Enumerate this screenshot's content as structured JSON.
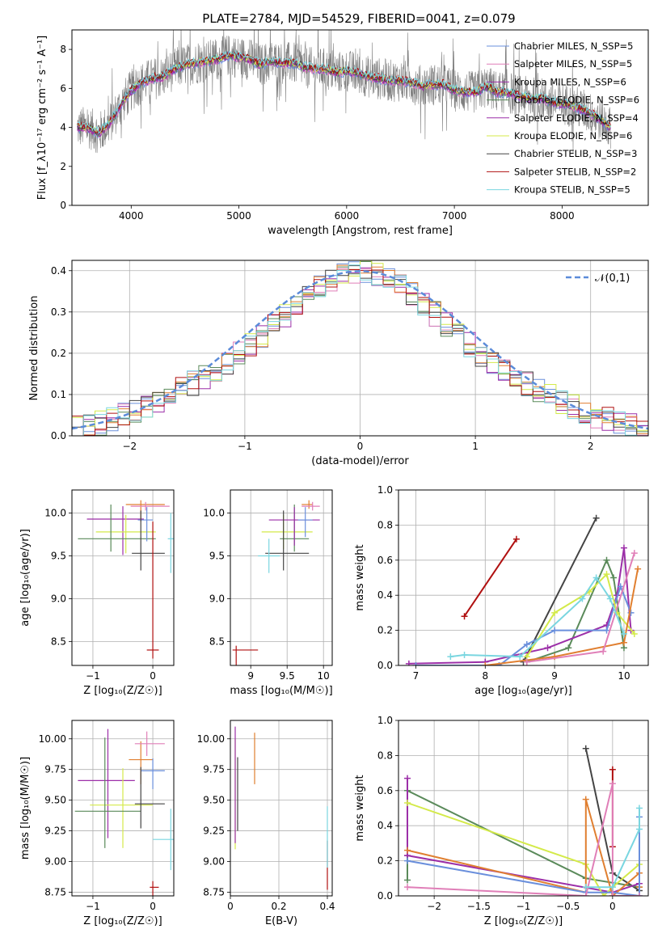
{
  "figure": {
    "title": "PLATE=2784, MJD=54529, FIBERID=0041, z=0.079"
  },
  "chart_data": [
    {
      "id": "spectrum",
      "type": "line",
      "xlabel": "wavelength [Angstrom, rest frame]",
      "ylabel": "Flux [f_λ10⁻¹⁷ erg cm⁻² s⁻¹ A⁻¹]",
      "xlim": [
        3450,
        8800
      ],
      "ylim": [
        0,
        9
      ],
      "xticks": [
        4000,
        5000,
        6000,
        7000,
        8000
      ],
      "yticks": [
        0,
        2,
        4,
        6,
        8
      ],
      "grid": false,
      "legend_position": "upper-right",
      "legend": [
        {
          "label": "Chabrier MILES, N_SSP=5",
          "color": "#6a8fdc"
        },
        {
          "label": "Salpeter MILES, N_SSP=5",
          "color": "#e07fb8"
        },
        {
          "label": "Kroupa MILES, N_SSP=6",
          "color": "#9c2fa8"
        },
        {
          "label": "Chabrier ELODIE, N_SSP=6",
          "color": "#5a8a5a"
        },
        {
          "label": "Salpeter ELODIE, N_SSP=4",
          "color": "#9c2fa8"
        },
        {
          "label": "Kroupa ELODIE, N_SSP=6",
          "color": "#d4ea4a"
        },
        {
          "label": "Chabrier STELIB, N_SSP=3",
          "color": "#444444"
        },
        {
          "label": "Salpeter STELIB, N_SSP=2",
          "color": "#b01010"
        },
        {
          "label": "Kroupa STELIB, N_SSP=5",
          "color": "#7ad6e0"
        }
      ],
      "continuum": [
        [
          3500,
          4.0
        ],
        [
          3600,
          4.0
        ],
        [
          3700,
          3.7
        ],
        [
          3800,
          4.2
        ],
        [
          3900,
          5.1
        ],
        [
          4000,
          5.9
        ],
        [
          4100,
          6.3
        ],
        [
          4200,
          6.5
        ],
        [
          4300,
          6.6
        ],
        [
          4400,
          7.0
        ],
        [
          4500,
          7.2
        ],
        [
          4600,
          7.3
        ],
        [
          4700,
          7.4
        ],
        [
          4800,
          7.5
        ],
        [
          4900,
          7.7
        ],
        [
          5000,
          7.6
        ],
        [
          5100,
          7.5
        ],
        [
          5200,
          7.2
        ],
        [
          5300,
          7.4
        ],
        [
          5400,
          7.3
        ],
        [
          5500,
          7.3
        ],
        [
          5600,
          7.1
        ],
        [
          5700,
          7.0
        ],
        [
          5800,
          7.0
        ],
        [
          5900,
          6.8
        ],
        [
          6000,
          6.9
        ],
        [
          6100,
          6.8
        ],
        [
          6200,
          6.6
        ],
        [
          6300,
          6.5
        ],
        [
          6400,
          6.4
        ],
        [
          6500,
          6.4
        ],
        [
          6600,
          6.3
        ],
        [
          6700,
          6.1
        ],
        [
          6800,
          6.2
        ],
        [
          6900,
          6.2
        ],
        [
          7000,
          5.9
        ],
        [
          7100,
          5.8
        ],
        [
          7200,
          5.8
        ],
        [
          7300,
          6.1
        ],
        [
          7400,
          5.8
        ],
        [
          7500,
          5.8
        ],
        [
          7600,
          5.6
        ],
        [
          7700,
          5.5
        ],
        [
          7800,
          5.5
        ],
        [
          7900,
          5.3
        ],
        [
          8000,
          5.2
        ],
        [
          8100,
          5.1
        ],
        [
          8200,
          4.9
        ],
        [
          8300,
          4.6
        ],
        [
          8400,
          4.2
        ],
        [
          8450,
          4.0
        ]
      ]
    },
    {
      "id": "residuals",
      "type": "histogram",
      "xlabel": "(data-model)/error",
      "ylabel": "Normed distribution",
      "xlim": [
        -2.5,
        2.5
      ],
      "ylim": [
        0,
        0.425
      ],
      "xticks": [
        -2,
        -1,
        0,
        1,
        2
      ],
      "yticks": [
        0.0,
        0.1,
        0.2,
        0.3,
        0.4
      ],
      "grid": true,
      "legend_position": "upper-right",
      "reference_curve": {
        "label": "𝒩(0,1)",
        "color": "#5b8bd9",
        "style": "dashed"
      }
    },
    {
      "id": "age_vs_Z",
      "type": "errorbar",
      "xlabel": "Z [log₁₀(Z/Z☉)]",
      "ylabel": "age  [log₁₀(age/yr)]",
      "xlim": [
        -1.35,
        0.35
      ],
      "ylim": [
        8.22,
        10.27
      ],
      "xticks": [
        -1,
        0
      ],
      "yticks": [
        8.5,
        9.0,
        9.5,
        10.0
      ],
      "grid": true,
      "points": [
        {
          "x": -0.5,
          "y": 9.93,
          "xe": [
            0.6,
            0.35
          ],
          "ye": [
            0.42,
            0.15
          ],
          "color": "#9c2fa8"
        },
        {
          "x": -0.45,
          "y": 9.78,
          "xe": [
            0.5,
            0.5
          ],
          "ye": [
            0.25,
            0.2
          ],
          "color": "#d4ea4a"
        },
        {
          "x": -0.7,
          "y": 9.7,
          "xe": [
            0.55,
            0.75
          ],
          "ye": [
            0.15,
            0.4
          ],
          "color": "#5a8a5a"
        },
        {
          "x": -0.2,
          "y": 10.1,
          "xe": [
            0.25,
            0.4
          ],
          "ye": [
            0.2,
            0.05
          ],
          "color": "#e07f30"
        },
        {
          "x": -0.1,
          "y": 9.92,
          "xe": [
            0.15,
            0.1
          ],
          "ye": [
            0.25,
            0.15
          ],
          "color": "#6a8fdc"
        },
        {
          "x": -0.12,
          "y": 10.08,
          "xe": [
            0.25,
            0.4
          ],
          "ye": [
            0.05,
            0.05
          ],
          "color": "#e07fb8"
        },
        {
          "x": -0.2,
          "y": 9.53,
          "xe": [
            0.15,
            0.4
          ],
          "ye": [
            0.2,
            0.5
          ],
          "color": "#444444"
        },
        {
          "x": 0.3,
          "y": 9.7,
          "xe": [
            0.05,
            0.05
          ],
          "ye": [
            0.4,
            0.3
          ],
          "color": "#7ad6e0"
        },
        {
          "x": 0.0,
          "y": 8.4,
          "xe": [
            0.1,
            0.1
          ],
          "ye": [
            0.1,
            1.5
          ],
          "color": "#b01010"
        }
      ]
    },
    {
      "id": "age_vs_mass",
      "type": "errorbar",
      "xlabel": "mass [log₁₀(M/M☉)]",
      "ylabel": "",
      "xlim": [
        8.72,
        10.12
      ],
      "ylim": [
        8.22,
        10.27
      ],
      "xticks": [
        9.0,
        9.5,
        10.0
      ],
      "yticks": [
        8.5,
        9.0,
        9.5,
        10.0
      ],
      "grid": true,
      "points": [
        {
          "x": 9.45,
          "y": 9.78,
          "xe": [
            0.3,
            0.4
          ],
          "ye": [
            0.2,
            0.2
          ],
          "color": "#d4ea4a"
        },
        {
          "x": 9.6,
          "y": 9.7,
          "xe": [
            0.2,
            0.2
          ],
          "ye": [
            0.15,
            0.4
          ],
          "color": "#5a8a5a"
        },
        {
          "x": 9.6,
          "y": 9.92,
          "xe": [
            0.35,
            0.35
          ],
          "ye": [
            0.3,
            0.15
          ],
          "color": "#9c2fa8"
        },
        {
          "x": 9.8,
          "y": 10.1,
          "xe": [
            0.1,
            0.05
          ],
          "ye": [
            0.05,
            0.05
          ],
          "color": "#e07f30"
        },
        {
          "x": 9.85,
          "y": 10.08,
          "xe": [
            0.15,
            0.1
          ],
          "ye": [
            0.05,
            0.05
          ],
          "color": "#e07fb8"
        },
        {
          "x": 9.75,
          "y": 9.92,
          "xe": [
            0.1,
            0.1
          ],
          "ye": [
            0.2,
            0.15
          ],
          "color": "#6a8fdc"
        },
        {
          "x": 9.45,
          "y": 9.53,
          "xe": [
            0.25,
            0.35
          ],
          "ye": [
            0.2,
            0.5
          ],
          "color": "#444444"
        },
        {
          "x": 9.25,
          "y": 9.5,
          "xe": [
            0.15,
            0.15
          ],
          "ye": [
            0.2,
            0.2
          ],
          "color": "#7ad6e0"
        },
        {
          "x": 8.8,
          "y": 8.4,
          "xe": [
            0.05,
            0.3
          ],
          "ye": [
            1.3,
            0.05
          ],
          "color": "#b01010"
        }
      ]
    },
    {
      "id": "massweight_vs_age",
      "type": "line",
      "xlabel": "age  [log₁₀(age/yr)]",
      "ylabel": "mass weight",
      "xlim": [
        6.75,
        10.35
      ],
      "ylim": [
        0,
        1.0
      ],
      "xticks": [
        7,
        8,
        9,
        10
      ],
      "yticks": [
        0.0,
        0.2,
        0.4,
        0.6,
        0.8,
        1.0
      ],
      "grid": true,
      "series": [
        {
          "color": "#b01010",
          "x": [
            7.7,
            8.45
          ],
          "y": [
            0.28,
            0.72
          ]
        },
        {
          "color": "#444444",
          "x": [
            8.55,
            9.6
          ],
          "y": [
            0.02,
            0.84
          ]
        },
        {
          "color": "#5a8a5a",
          "x": [
            8.6,
            9.2,
            9.75,
            9.85,
            10.0
          ],
          "y": [
            0.02,
            0.1,
            0.6,
            0.5,
            0.1
          ]
        },
        {
          "color": "#9c2fa8",
          "x": [
            6.9,
            8.0,
            8.9,
            9.75,
            9.9,
            10.0,
            10.1
          ],
          "y": [
            0.01,
            0.02,
            0.1,
            0.23,
            0.4,
            0.67,
            0.2
          ]
        },
        {
          "color": "#6a8fdc",
          "x": [
            7.0,
            8.2,
            8.6,
            9.0,
            9.75,
            9.95,
            10.1
          ],
          "y": [
            0.0,
            0.0,
            0.12,
            0.2,
            0.2,
            0.45,
            0.3
          ]
        },
        {
          "color": "#d4ea4a",
          "x": [
            8.6,
            9.0,
            9.5,
            9.75,
            9.9,
            10.15
          ],
          "y": [
            0.05,
            0.3,
            0.42,
            0.52,
            0.3,
            0.18
          ]
        },
        {
          "color": "#e07f30",
          "x": [
            8.0,
            9.0,
            10.0,
            10.2
          ],
          "y": [
            0.0,
            0.05,
            0.13,
            0.55
          ]
        },
        {
          "color": "#e07fb8",
          "x": [
            8.6,
            9.7,
            10.15
          ],
          "y": [
            0.02,
            0.08,
            0.64
          ]
        },
        {
          "color": "#7ad6e0",
          "x": [
            7.5,
            7.7,
            8.5,
            9.4,
            9.6,
            9.8,
            10.0
          ],
          "y": [
            0.05,
            0.06,
            0.05,
            0.38,
            0.5,
            0.38,
            0.18
          ]
        }
      ]
    },
    {
      "id": "mass_vs_Z",
      "type": "errorbar",
      "xlabel": "Z [log₁₀(Z/Z☉)]",
      "ylabel": "mass [log₁₀(M/M☉)]",
      "xlim": [
        -1.35,
        0.35
      ],
      "ylim": [
        8.72,
        10.15
      ],
      "xticks": [
        -1,
        0
      ],
      "yticks": [
        8.75,
        9.0,
        9.25,
        9.5,
        9.75,
        10.0
      ],
      "grid": true,
      "points": [
        {
          "x": -0.75,
          "y": 9.66,
          "xe": [
            0.5,
            0.45
          ],
          "ye": [
            0.47,
            0.42
          ],
          "color": "#9c2fa8"
        },
        {
          "x": -0.5,
          "y": 9.46,
          "xe": [
            0.55,
            0.5
          ],
          "ye": [
            0.35,
            0.3
          ],
          "color": "#d4ea4a"
        },
        {
          "x": -0.8,
          "y": 9.41,
          "xe": [
            0.5,
            0.6
          ],
          "ye": [
            0.3,
            0.6
          ],
          "color": "#5a8a5a"
        },
        {
          "x": -0.2,
          "y": 9.83,
          "xe": [
            0.2,
            0.2
          ],
          "ye": [
            0.2,
            0.15
          ],
          "color": "#e07f30"
        },
        {
          "x": -0.1,
          "y": 9.96,
          "xe": [
            0.2,
            0.3
          ],
          "ye": [
            0.1,
            0.1
          ],
          "color": "#e07fb8"
        },
        {
          "x": 0.0,
          "y": 9.74,
          "xe": [
            0.2,
            0.2
          ],
          "ye": [
            0.15,
            0.1
          ],
          "color": "#6a8fdc"
        },
        {
          "x": -0.2,
          "y": 9.47,
          "xe": [
            0.1,
            0.4
          ],
          "ye": [
            0.2,
            0.3
          ],
          "color": "#444444"
        },
        {
          "x": 0.3,
          "y": 9.18,
          "xe": [
            0.3,
            0.05
          ],
          "ye": [
            0.25,
            0.25
          ],
          "color": "#7ad6e0"
        },
        {
          "x": 0.0,
          "y": 8.79,
          "xe": [
            0.05,
            0.1
          ],
          "ye": [
            0.35,
            0.05
          ],
          "color": "#b01010"
        }
      ]
    },
    {
      "id": "mass_vs_ebv",
      "type": "errorbar",
      "xlabel": "E(B-V)",
      "ylabel": "",
      "xlim": [
        0.0,
        0.42
      ],
      "ylim": [
        8.72,
        10.15
      ],
      "xticks": [
        0.0,
        0.2,
        0.4
      ],
      "yticks": [
        8.75,
        9.0,
        9.25,
        9.5,
        9.75,
        10.0
      ],
      "grid": true,
      "points": [
        {
          "x": 0.02,
          "y": 9.55,
          "xe": [
            0,
            0
          ],
          "ye": [
            0.45,
            0.45
          ],
          "color": "#d4ea4a"
        },
        {
          "x": 0.02,
          "y": 9.6,
          "xe": [
            0,
            0
          ],
          "ye": [
            0.45,
            0.5
          ],
          "color": "#9c2fa8"
        },
        {
          "x": 0.03,
          "y": 9.55,
          "xe": [
            0,
            0
          ],
          "ye": [
            0.3,
            0.3
          ],
          "color": "#444444"
        },
        {
          "x": 0.1,
          "y": 9.83,
          "xe": [
            0,
            0
          ],
          "ye": [
            0.2,
            0.22
          ],
          "color": "#e07f30"
        },
        {
          "x": 0.4,
          "y": 8.97,
          "xe": [
            0,
            0
          ],
          "ye": [
            0.2,
            0.2
          ],
          "color": "#b01010"
        },
        {
          "x": 0.4,
          "y": 9.3,
          "xe": [
            0,
            0
          ],
          "ye": [
            0.35,
            0.15
          ],
          "color": "#7ad6e0"
        }
      ]
    },
    {
      "id": "massweight_vs_Z",
      "type": "line",
      "xlabel": "Z [log₁₀(Z/Z☉)]",
      "ylabel": "mass weight",
      "xlim": [
        -2.4,
        0.4
      ],
      "ylim": [
        0,
        1.0
      ],
      "xticks": [
        -2.0,
        -1.5,
        -1.0,
        -0.5,
        0.0
      ],
      "yticks": [
        0.0,
        0.2,
        0.4,
        0.6,
        0.8,
        1.0
      ],
      "grid": true,
      "series": [
        {
          "color": "#444444",
          "x": [
            -0.3,
            0.0,
            0.3
          ],
          "y": [
            0.84,
            0.13,
            0.03
          ]
        },
        {
          "color": "#b01010",
          "x": [
            0.0,
            0.0
          ],
          "y": [
            0.72,
            0.28
          ]
        },
        {
          "color": "#5a8a5a",
          "x": [
            -2.3,
            -2.3,
            -0.3,
            0.3
          ],
          "y": [
            0.09,
            0.6,
            0.1,
            0.05
          ]
        },
        {
          "color": "#9c2fa8",
          "x": [
            -2.3,
            -2.3,
            -2.3,
            0.0,
            0.3
          ],
          "y": [
            0.67,
            0.23,
            0.23,
            0.02,
            0.07
          ]
        },
        {
          "color": "#d4ea4a",
          "x": [
            -2.3,
            -0.3,
            -0.1,
            0.0,
            0.3
          ],
          "y": [
            0.53,
            0.18,
            0.0,
            0.05,
            0.18
          ]
        },
        {
          "color": "#e07f30",
          "x": [
            -2.3,
            -0.3,
            -0.3,
            0.0,
            0.3,
            0.3
          ],
          "y": [
            0.26,
            0.02,
            0.55,
            0.0,
            0.13,
            0.05
          ]
        },
        {
          "color": "#6a8fdc",
          "x": [
            -2.3,
            -0.3,
            0.0,
            0.3,
            0.3
          ],
          "y": [
            0.2,
            0.02,
            0.02,
            0.0,
            0.45
          ]
        },
        {
          "color": "#e07fb8",
          "x": [
            -2.3,
            -0.3,
            0.0,
            0.0,
            0.3
          ],
          "y": [
            0.05,
            0.0,
            0.64,
            0.0,
            0.0
          ]
        },
        {
          "color": "#7ad6e0",
          "x": [
            -0.3,
            0.0,
            0.3,
            0.3
          ],
          "y": [
            0.05,
            0.05,
            0.38,
            0.5
          ]
        }
      ]
    }
  ],
  "colors": [
    "#6a8fdc",
    "#e07fb8",
    "#9c2fa8",
    "#5a8a5a",
    "#e07f30",
    "#d4ea4a",
    "#444444",
    "#b01010",
    "#7ad6e0"
  ]
}
